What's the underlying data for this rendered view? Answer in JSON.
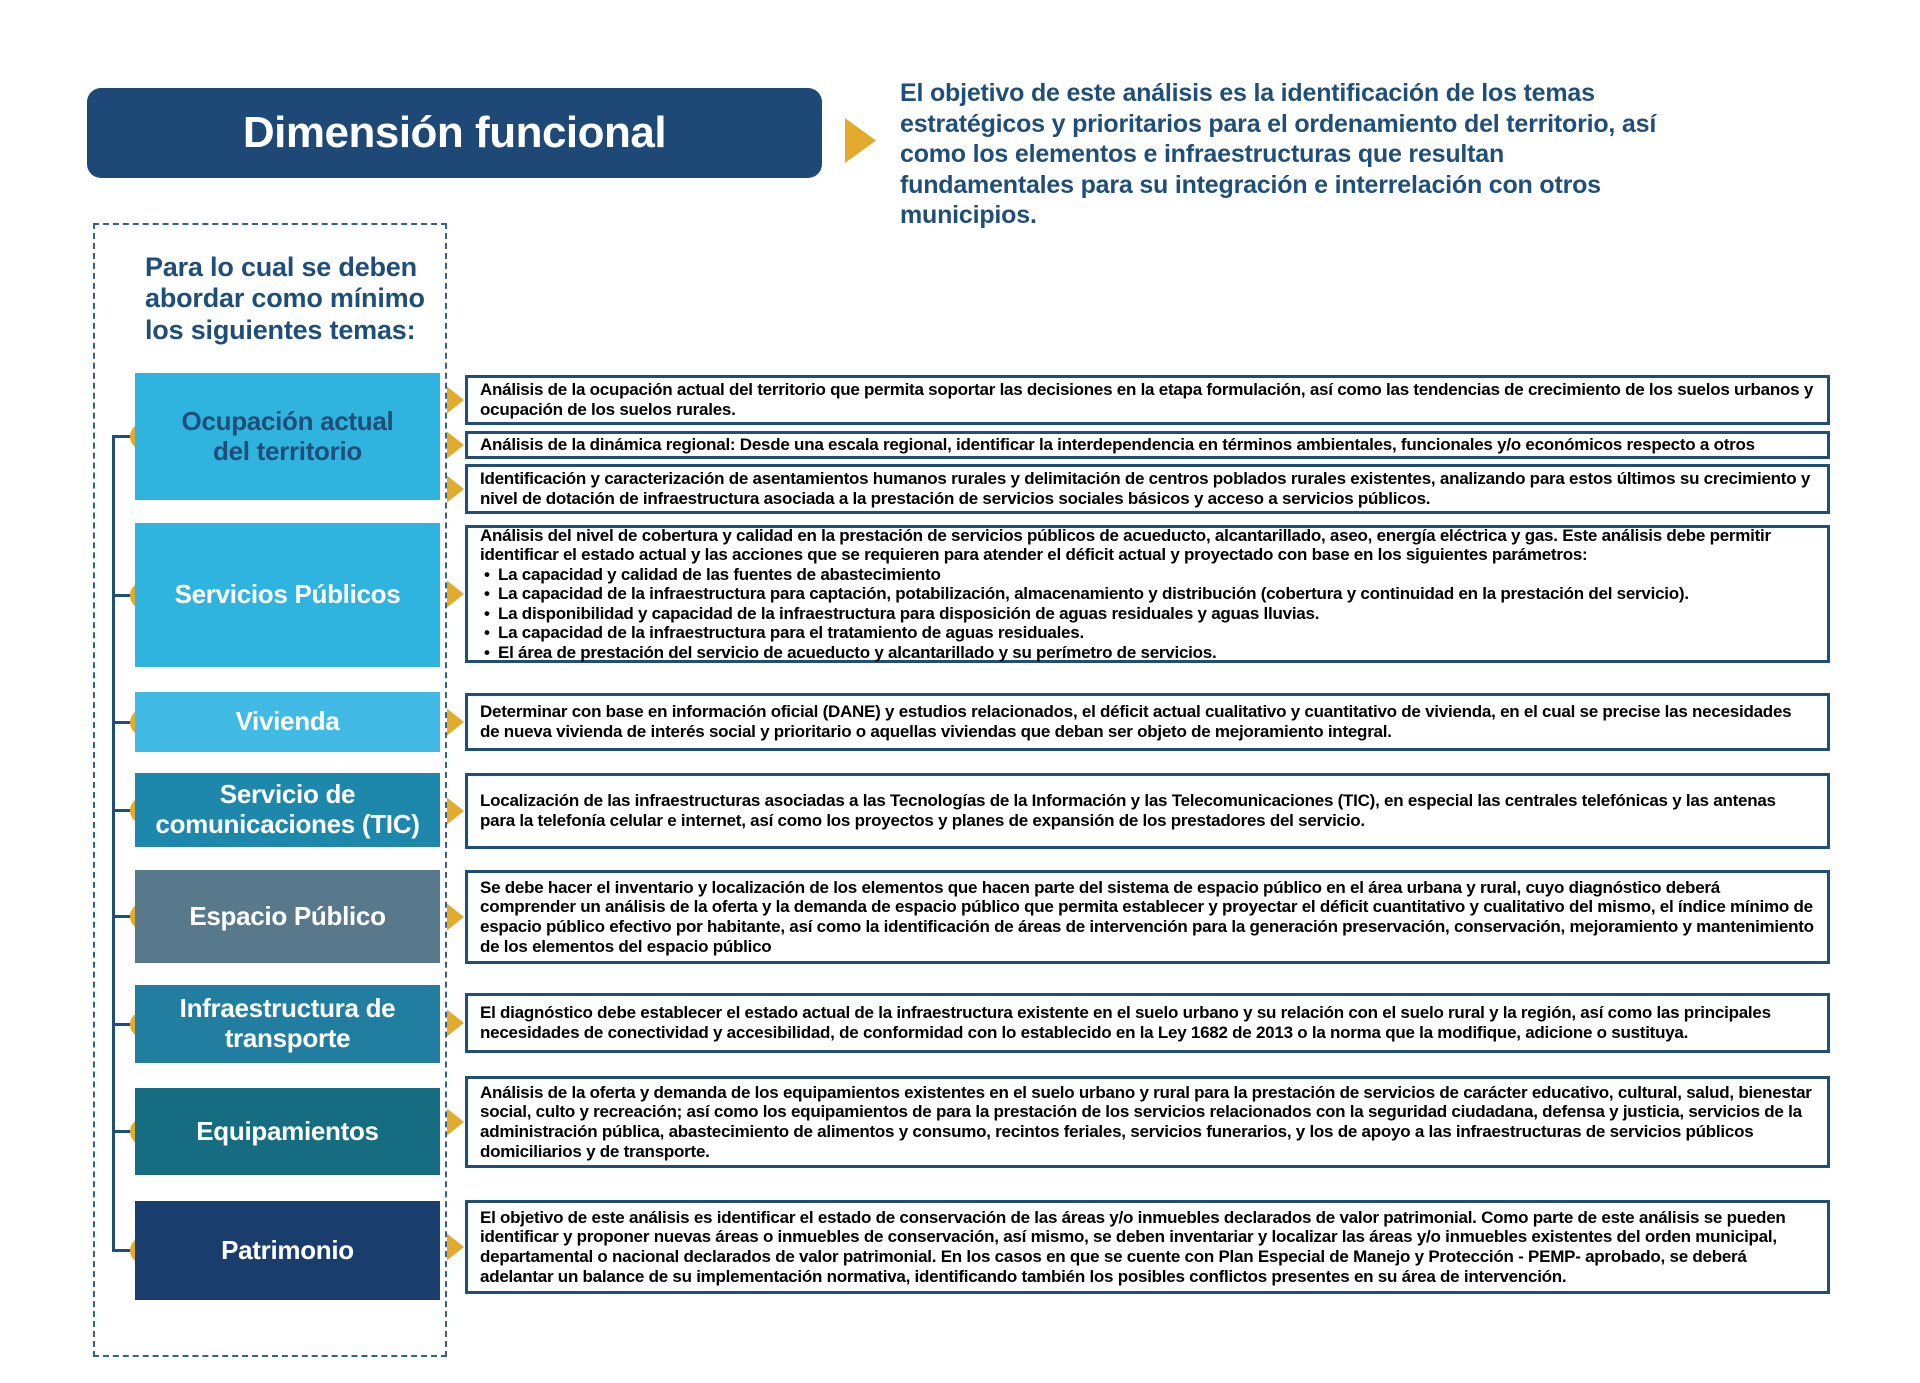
{
  "title": "Dimensión funcional",
  "intro": "El objetivo de este análisis es la identificación de los temas estratégicos y prioritarios para el ordenamiento del territorio, así como los elementos e infraestructuras que resultan fundamentales para su integración e interrelación con otros municipios.",
  "sidebar": {
    "header": "Para lo cual se deben abordar como mínimo los siguientes temas:"
  },
  "topics": [
    {
      "label": "Ocupación actual del territorio",
      "bg": "#2FB4DF",
      "fg": "#1F4E79",
      "descriptions": [
        {
          "text": "Análisis de la ocupación actual del territorio que permita soportar las decisiones en la etapa formulación, así como las tendencias de crecimiento de los suelos urbanos y ocupación de los suelos rurales."
        },
        {
          "text": "Análisis de la dinámica regional: Desde una escala regional, identificar la interdependencia en términos ambientales, funcionales y/o económicos respecto a otros"
        },
        {
          "text": "Identificación y caracterización de asentamientos humanos rurales y delimitación de centros poblados rurales existentes, analizando para estos últimos su crecimiento y nivel de dotación de infraestructura asociada a la prestación de servicios sociales básicos y acceso a servicios públicos."
        }
      ]
    },
    {
      "label": "Servicios Públicos",
      "bg": "#2FB4DF",
      "fg": "#FFFFFF",
      "descriptions": [
        {
          "text": "Análisis del nivel de cobertura y calidad en la prestación de servicios públicos de acueducto, alcantarillado, aseo, energía eléctrica y gas. Este análisis debe permitir identificar el estado actual y las acciones que se requieren para atender el déficit actual y proyectado con base en los siguientes parámetros:",
          "bullets": [
            "La capacidad y calidad de las fuentes de abastecimiento",
            "La capacidad de la infraestructura para captación, potabilización, almacenamiento y distribución (cobertura y continuidad en la prestación del servicio).",
            "La disponibilidad y capacidad de la infraestructura para disposición de aguas residuales y aguas lluvias.",
            "La capacidad de la infraestructura para el tratamiento de aguas residuales.",
            "El área de prestación del servicio de acueducto y alcantarillado y su perímetro de servicios."
          ]
        }
      ]
    },
    {
      "label": "Vivienda",
      "bg": "#41BBE5",
      "fg": "#FFFFFF",
      "descriptions": [
        {
          "text": "Determinar con base en información oficial (DANE) y estudios relacionados, el déficit actual cualitativo y cuantitativo de vivienda, en el cual se precise las necesidades de nueva vivienda de interés social y prioritario o aquellas viviendas que deban ser objeto de mejoramiento integral."
        }
      ]
    },
    {
      "label": "Servicio de comunicaciones (TIC)",
      "bg": "#1E87AC",
      "fg": "#FFFFFF",
      "descriptions": [
        {
          "text": "Localización de las infraestructuras asociadas a las Tecnologías de la Información y las Telecomunicaciones (TIC), en especial las centrales telefónicas y las antenas para la telefonía celular e internet, así como los proyectos y planes de expansión de los prestadores del servicio."
        }
      ]
    },
    {
      "label": "Espacio Público",
      "bg": "#58798B",
      "fg": "#FFFFFF",
      "descriptions": [
        {
          "text": "Se debe hacer el inventario y localización de los elementos que hacen parte del sistema de espacio público en el área urbana y rural, cuyo diagnóstico deberá comprender un análisis de la oferta y la demanda de espacio público que permita establecer y proyectar el déficit cuantitativo y cualitativo del mismo, el índice mínimo de espacio público efectivo por habitante, así como la identificación de áreas de intervención para la generación preservación, conservación, mejoramiento y mantenimiento de los elementos del espacio público"
        }
      ]
    },
    {
      "label": "Infraestructura de transporte",
      "bg": "#217EA0",
      "fg": "#FFFFFF",
      "descriptions": [
        {
          "text": "El diagnóstico debe establecer el estado actual de la infraestructura existente en el suelo urbano y su relación con el suelo rural y la región, así como las principales necesidades de conectividad y accesibilidad, de conformidad con lo establecido en la Ley 1682 de 2013 o la norma que la modifique, adicione o sustituya."
        }
      ]
    },
    {
      "label": "Equipamientos",
      "bg": "#166C80",
      "fg": "#FFFFFF",
      "descriptions": [
        {
          "text": "Análisis de la oferta y demanda de los equipamientos existentes en el suelo urbano y rural para la prestación de servicios de carácter educativo, cultural, salud, bienestar social, culto y recreación; así como los equipamientos de para la prestación de los servicios relacionados con la seguridad ciudadana, defensa y justicia, servicios de la administración pública, abastecimiento de alimentos y consumo, recintos feriales, servicios funerarios, y los de apoyo a las infraestructuras de servicios públicos domiciliarios y de transporte."
        }
      ]
    },
    {
      "label": "Patrimonio",
      "bg": "#193E6D",
      "fg": "#FFFFFF",
      "descriptions": [
        {
          "text": "El objetivo de este análisis es identificar el estado de conservación de las áreas y/o inmuebles declarados de valor patrimonial. Como parte de este análisis se pueden identificar y proponer nuevas áreas o inmuebles de conservación, así mismo, se deben inventariar y localizar las áreas y/o inmuebles existentes del orden municipal, departamental o nacional declarados de valor patrimonial. En los casos en que se cuente con Plan Especial de Manejo y Protección - PEMP- aprobado, se deberá adelantar un balance de su implementación normativa, identificando también los posibles conflictos presentes en su área de intervención."
        }
      ]
    }
  ],
  "colors": {
    "navy": "#1F4E79",
    "title_bg": "#1E4876",
    "gold": "#E2AB2D",
    "desc_border": "#1F4E79",
    "dashed_border": "#2F6292"
  },
  "icons": {
    "title_arrow": "right-arrow-icon",
    "desc_arrow": "right-arrow-icon",
    "connector_dot": "circle-dot-icon"
  }
}
